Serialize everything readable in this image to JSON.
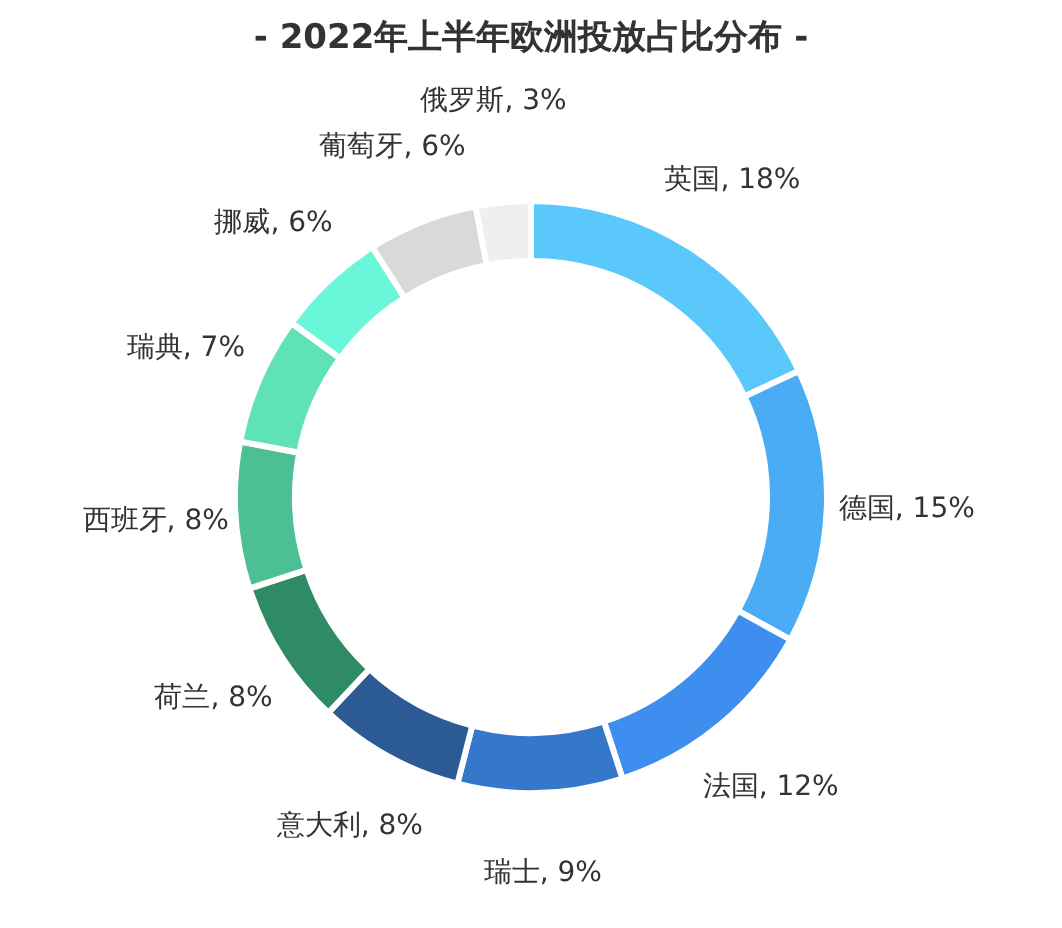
{
  "chart_data": {
    "type": "donut",
    "title": "- 2022年上半年欧洲投放占比分布 -",
    "categories": [
      "英国",
      "德国",
      "法国",
      "瑞士",
      "意大利",
      "荷兰",
      "西班牙",
      "瑞典",
      "挪威",
      "葡萄牙",
      "俄罗斯"
    ],
    "values": [
      18,
      15,
      12,
      9,
      8,
      8,
      8,
      7,
      6,
      6,
      3
    ],
    "value_labels": [
      "18%",
      "15%",
      "12%",
      "9%",
      "8%",
      "8%",
      "8%",
      "7%",
      "6%",
      "6%",
      "3%"
    ],
    "colors": [
      "#5bc8fb",
      "#4aacf5",
      "#3e8ef0",
      "#3577c9",
      "#2b5a94",
      "#2f8a66",
      "#4cbf94",
      "#5fe3b6",
      "#6af6d8",
      "#d9d9d9",
      "#efefef"
    ]
  }
}
